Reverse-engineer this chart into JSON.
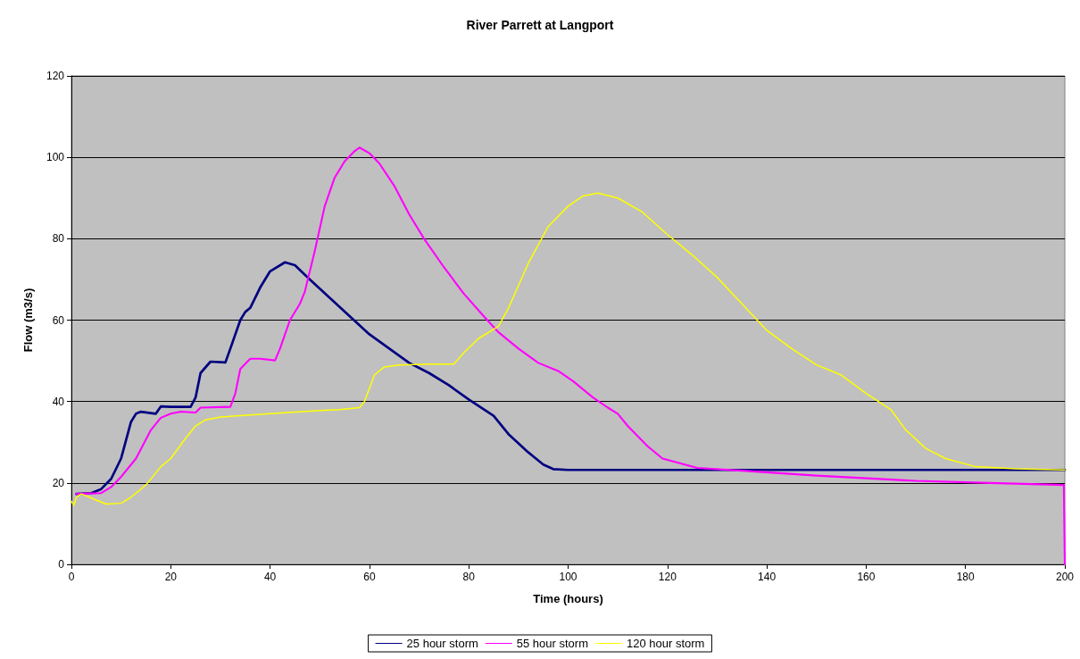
{
  "chart_data": {
    "type": "line",
    "title": "River Parrett at Langport",
    "xlabel": "Time (hours)",
    "ylabel": "Flow (m3/s)",
    "xlim": [
      0,
      200
    ],
    "xticks": [
      0,
      20,
      40,
      60,
      80,
      100,
      120,
      140,
      160,
      180,
      200
    ],
    "ylim": [
      0,
      120
    ],
    "yticks": [
      0,
      20,
      40,
      60,
      80,
      100,
      120
    ],
    "grid": "y",
    "legend": "bottom",
    "marker": "none",
    "line_style": "solid",
    "series": [
      {
        "name": "25 hour storm",
        "color": "#000080",
        "x": [
          1,
          4,
          6,
          8,
          10,
          12,
          13,
          14,
          17,
          18,
          20,
          24,
          25,
          26,
          28,
          31,
          32,
          34,
          35,
          36,
          38,
          40,
          43,
          45,
          48,
          52,
          56,
          60,
          64,
          68,
          72,
          76,
          80,
          85,
          88,
          92,
          95,
          97,
          100,
          200
        ],
        "values": [
          17.3,
          17.5,
          18.5,
          21,
          26,
          35,
          37,
          37.5,
          37,
          38.8,
          38.7,
          38.7,
          41,
          47,
          49.8,
          49.6,
          53,
          60,
          62,
          63,
          68,
          72,
          74.2,
          73.5,
          70,
          65.5,
          61,
          56.5,
          53,
          49.5,
          47,
          44,
          40.5,
          36.5,
          32,
          27.5,
          24.5,
          23.4,
          23.2,
          23.2
        ]
      },
      {
        "name": "55 hour storm",
        "color": "#ff00ff",
        "x": [
          1,
          6,
          8,
          10,
          13,
          16,
          18,
          20,
          22,
          25,
          26,
          32,
          33,
          34,
          36,
          38,
          41,
          42,
          44,
          46,
          47,
          49,
          51,
          53,
          55,
          57,
          58,
          60,
          62,
          65,
          68,
          71,
          75,
          79,
          83,
          86,
          90,
          94,
          98,
          101,
          105,
          108,
          110,
          112,
          116,
          119,
          122,
          126,
          135,
          150,
          170,
          185,
          199.8,
          200
        ],
        "values": [
          17.3,
          17.5,
          19,
          21.5,
          26,
          33,
          36,
          37,
          37.5,
          37.3,
          38.5,
          38.7,
          42,
          48,
          50.5,
          50.5,
          50.1,
          53,
          60,
          64,
          67,
          77,
          88,
          95,
          99,
          101.5,
          102.4,
          101,
          98.5,
          93,
          86,
          80,
          73,
          66.5,
          61,
          57,
          53,
          49.5,
          47.5,
          45,
          41,
          38.5,
          37,
          34,
          29,
          26,
          25,
          23.7,
          23,
          21.8,
          20.5,
          20,
          19.5,
          0
        ]
      },
      {
        "name": "120 hour storm",
        "color": "#ffff00",
        "x": [
          0,
          0.5,
          1,
          2,
          3,
          5,
          7,
          10,
          12,
          15,
          18,
          20,
          23,
          25,
          27,
          30,
          40,
          50,
          54,
          58,
          59,
          61,
          63,
          66,
          72,
          77,
          79,
          82,
          86,
          88,
          92,
          96,
          100,
          103,
          106,
          110,
          115,
          120,
          125,
          130,
          135,
          140,
          145,
          150,
          155,
          160,
          165,
          168,
          172,
          176,
          182,
          190,
          200
        ],
        "values": [
          15.5,
          14.5,
          16.5,
          17.3,
          16.8,
          15.8,
          14.8,
          15,
          16.5,
          19.5,
          24,
          26,
          31,
          34,
          35.5,
          36.2,
          37,
          37.8,
          38,
          38.5,
          40,
          46.5,
          48.5,
          49,
          49.2,
          49.2,
          52,
          55.5,
          58.5,
          63,
          74,
          83,
          88,
          90.5,
          91.2,
          90,
          86.5,
          81,
          76,
          70.5,
          64,
          57.5,
          53,
          49,
          46.5,
          42,
          38,
          33,
          28.5,
          26,
          24,
          23.5,
          23.2
        ]
      }
    ]
  }
}
